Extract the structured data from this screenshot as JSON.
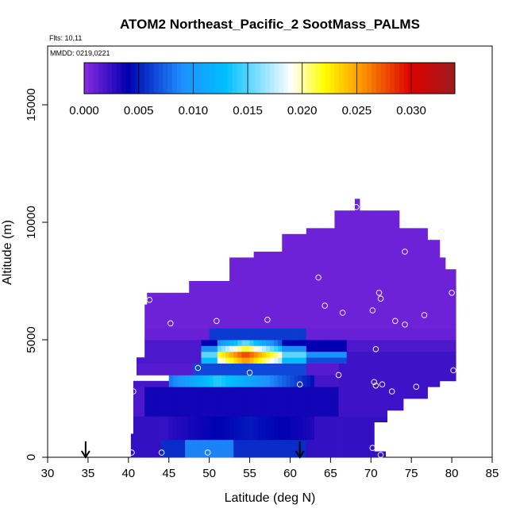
{
  "chart_data": {
    "type": "heatmap",
    "title": "ATOM2 Northeast_Pacific_2 SootMass_PALMS",
    "flights_label": "Flts: 10,11",
    "mmdd_label": "MMDD: 0219,0221",
    "xlabel": "Latitude (deg N)",
    "ylabel": "Altitude (m)",
    "xlim": [
      30,
      85
    ],
    "ylim": [
      0,
      17500
    ],
    "x_ticks": [
      "30",
      "35",
      "40",
      "45",
      "50",
      "55",
      "60",
      "65",
      "70",
      "75",
      "80",
      "85"
    ],
    "y_ticks": [
      "0",
      "5000",
      "10000",
      "15000"
    ],
    "colorbar": {
      "range": [
        0,
        0.034
      ],
      "ticks": [
        "0.000",
        "0.005",
        "0.010",
        "0.015",
        "0.020",
        "0.025",
        "0.030"
      ]
    },
    "arrows_latitude": [
      34.7,
      61.2
    ],
    "sample_points": [
      [
        40.4,
        200
      ],
      [
        44.1,
        200
      ],
      [
        49.8,
        200
      ],
      [
        70.2,
        400
      ],
      [
        71.2,
        100
      ],
      [
        40.6,
        2800
      ],
      [
        48.6,
        3800
      ],
      [
        55.0,
        3600
      ],
      [
        61.2,
        3100
      ],
      [
        66.0,
        3500
      ],
      [
        70.4,
        3200
      ],
      [
        70.6,
        3050
      ],
      [
        71.4,
        3100
      ],
      [
        72.6,
        2800
      ],
      [
        75.6,
        3000
      ],
      [
        80.2,
        3700
      ],
      [
        70.6,
        4600
      ],
      [
        42.6,
        6700
      ],
      [
        45.2,
        5700
      ],
      [
        50.9,
        5800
      ],
      [
        57.2,
        5850
      ],
      [
        63.5,
        7650
      ],
      [
        64.3,
        6450
      ],
      [
        66.5,
        6150
      ],
      [
        70.2,
        6250
      ],
      [
        71.0,
        7000
      ],
      [
        71.2,
        6750
      ],
      [
        73.0,
        5800
      ],
      [
        74.2,
        5650
      ],
      [
        76.6,
        6050
      ],
      [
        80.0,
        7000
      ],
      [
        68.2,
        10650
      ],
      [
        74.0,
        9950
      ],
      [
        74.2,
        8750
      ],
      [
        78.7,
        9600
      ]
    ]
  }
}
